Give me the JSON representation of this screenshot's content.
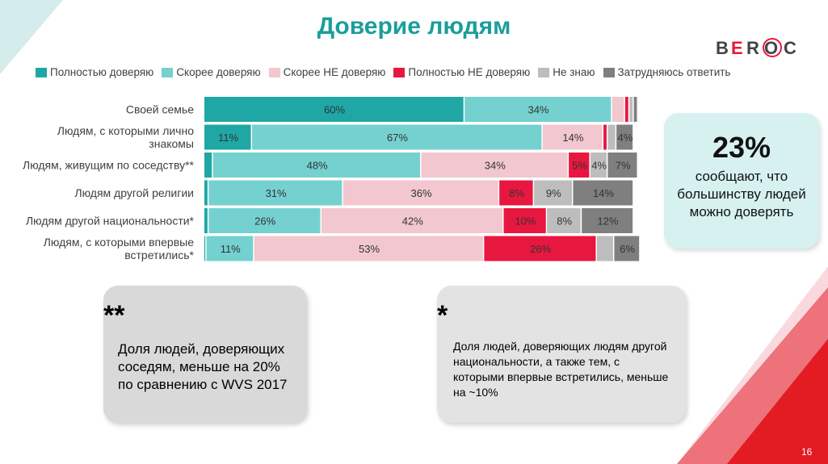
{
  "title": "Доверие людям",
  "logo": {
    "text": "BEROC",
    "letters": [
      "B",
      "E",
      "R",
      "O",
      "C"
    ]
  },
  "colors": {
    "full_trust": "#1fa7a5",
    "rather_trust": "#74d1d0",
    "rather_not": "#f2c7cf",
    "full_not": "#e8173f",
    "dont_know": "#bdbdbd",
    "hard_to_say": "#7f7f7f",
    "title": "#1a9e9c",
    "accent_red": "#e8173f"
  },
  "legend": [
    {
      "label": "Полностью доверяю",
      "color": "#1fa7a5"
    },
    {
      "label": "Скорее доверяю",
      "color": "#74d1d0"
    },
    {
      "label": "Скорее НЕ доверяю",
      "color": "#f2c7cf"
    },
    {
      "label": "Полностью НЕ доверяю",
      "color": "#e8173f"
    },
    {
      "label": "Не знаю",
      "color": "#bdbdbd"
    },
    {
      "label": "Затрудняюсь ответить",
      "color": "#7f7f7f"
    }
  ],
  "chart_data": {
    "type": "bar",
    "orientation": "horizontal",
    "stacked": true,
    "categories": [
      [
        "Своей семье"
      ],
      [
        "Людям, с которыми лично",
        "знакомы"
      ],
      [
        "Людям, живущим по соседству**"
      ],
      [
        "Людям другой религии"
      ],
      [
        "Людям другой национальности*"
      ],
      [
        "Людям, с которыми впервые",
        "встретились*"
      ]
    ],
    "series": [
      {
        "name": "Полностью доверяю",
        "values": [
          60,
          11,
          2,
          1,
          1,
          0.5
        ]
      },
      {
        "name": "Скорее доверяю",
        "values": [
          34,
          67,
          48,
          31,
          26,
          11
        ]
      },
      {
        "name": "Скорее НЕ доверяю",
        "values": [
          3,
          14,
          34,
          36,
          42,
          53
        ]
      },
      {
        "name": "Полностью НЕ доверяю",
        "values": [
          1,
          1,
          5,
          8,
          10,
          26
        ]
      },
      {
        "name": "Не знаю",
        "values": [
          1,
          2,
          4,
          9,
          8,
          4
        ]
      },
      {
        "name": "Затрудняюсь ответить",
        "values": [
          1,
          4,
          7,
          14,
          12,
          6
        ]
      }
    ],
    "data_labels": [
      [
        "60%",
        "34%",
        "",
        "",
        "",
        ""
      ],
      [
        "11%",
        "67%",
        "14%",
        "",
        "",
        "4%"
      ],
      [
        "",
        "48%",
        "34%",
        "5%",
        "4%",
        "7%"
      ],
      [
        "",
        "31%",
        "36%",
        "8%",
        "9%",
        "14%"
      ],
      [
        "",
        "26%",
        "42%",
        "10%",
        "8%",
        "12%"
      ],
      [
        "",
        "11%",
        "53%",
        "26%",
        "",
        "6%"
      ]
    ],
    "xlim": [
      0,
      100
    ],
    "legend_position": "top"
  },
  "stat_box": {
    "number": "23%",
    "text": "сообщают, что большинству людей можно доверять"
  },
  "note_neighbors": {
    "star": "**",
    "text": "Доля людей, доверяющих соседям, меньше на 20% по сравнению с WVS 2017"
  },
  "note_nationality": {
    "star": "*",
    "text": "Доля людей, доверяющих людям другой национальности, а также тем, с которыми впервые встретились, меньше на ~10%"
  },
  "page_number": "16"
}
